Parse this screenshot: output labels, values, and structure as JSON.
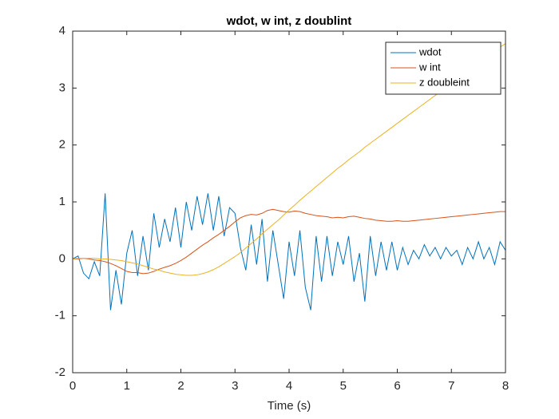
{
  "chart_data": {
    "type": "line",
    "title": "wdot, w int, z doublint",
    "xlabel": "Time (s)",
    "x": [
      0,
      0.1,
      0.2,
      0.3,
      0.4,
      0.5,
      0.6,
      0.7,
      0.8,
      0.9,
      1,
      1.1,
      1.2,
      1.3,
      1.4,
      1.5,
      1.6,
      1.7,
      1.8,
      1.9,
      2,
      2.1,
      2.2,
      2.3,
      2.4,
      2.5,
      2.6,
      2.7,
      2.8,
      2.9,
      3,
      3.1,
      3.2,
      3.3,
      3.4,
      3.5,
      3.6,
      3.7,
      3.8,
      3.9,
      4,
      4.1,
      4.2,
      4.3,
      4.4,
      4.5,
      4.6,
      4.7,
      4.8,
      4.9,
      5,
      5.1,
      5.2,
      5.3,
      5.4,
      5.5,
      5.6,
      5.7,
      5.8,
      5.9,
      6,
      6.1,
      6.2,
      6.3,
      6.4,
      6.5,
      6.6,
      6.7,
      6.8,
      6.9,
      7,
      7.1,
      7.2,
      7.3,
      7.4,
      7.5,
      7.6,
      7.7,
      7.8,
      7.9,
      8
    ],
    "series": [
      {
        "name": "wdot",
        "color": "#0072bd",
        "values": [
          0,
          0.05,
          -0.25,
          -0.35,
          -0.05,
          -0.3,
          1.15,
          -0.9,
          -0.2,
          -0.8,
          0.1,
          0.5,
          -0.3,
          0.4,
          -0.2,
          0.8,
          0.2,
          0.7,
          0.3,
          0.9,
          0.2,
          1.0,
          0.5,
          1.1,
          0.6,
          1.15,
          0.5,
          1.1,
          0.4,
          0.9,
          0.8,
          0.2,
          -0.2,
          0.6,
          -0.1,
          0.7,
          -0.4,
          0.5,
          -0.1,
          -0.7,
          0.3,
          -0.3,
          0.5,
          -0.5,
          -0.9,
          0.4,
          -0.4,
          0.4,
          -0.3,
          0.3,
          -0.1,
          0.4,
          -0.4,
          0.1,
          -0.75,
          0.4,
          -0.3,
          0.3,
          -0.2,
          0.3,
          -0.2,
          0.2,
          -0.1,
          0.15,
          0,
          0.25,
          0.05,
          0.2,
          0,
          0.2,
          0.05,
          0.15,
          -0.1,
          0.2,
          0,
          0.3,
          0,
          0.2,
          -0.1,
          0.3,
          0.15
        ]
      },
      {
        "name": "w int",
        "color": "#d95319",
        "values": [
          0,
          0,
          0.01,
          0,
          -0.02,
          -0.03,
          -0.05,
          -0.08,
          -0.12,
          -0.17,
          -0.22,
          -0.24,
          -0.24,
          -0.26,
          -0.25,
          -0.22,
          -0.18,
          -0.15,
          -0.12,
          -0.08,
          -0.03,
          0.03,
          0.1,
          0.17,
          0.24,
          0.3,
          0.37,
          0.43,
          0.5,
          0.57,
          0.65,
          0.72,
          0.76,
          0.78,
          0.77,
          0.8,
          0.85,
          0.87,
          0.85,
          0.83,
          0.82,
          0.84,
          0.83,
          0.8,
          0.78,
          0.76,
          0.75,
          0.74,
          0.72,
          0.73,
          0.72,
          0.74,
          0.75,
          0.73,
          0.71,
          0.7,
          0.68,
          0.67,
          0.66,
          0.66,
          0.67,
          0.66,
          0.66,
          0.67,
          0.68,
          0.69,
          0.7,
          0.71,
          0.72,
          0.73,
          0.74,
          0.75,
          0.76,
          0.77,
          0.78,
          0.79,
          0.8,
          0.81,
          0.82,
          0.83,
          0.83
        ]
      },
      {
        "name": "z doubleint",
        "color": "#edb120",
        "values": [
          0,
          0.01,
          0.01,
          0.01,
          0.01,
          0,
          0,
          -0.01,
          -0.02,
          -0.03,
          -0.05,
          -0.07,
          -0.09,
          -0.12,
          -0.15,
          -0.18,
          -0.2,
          -0.23,
          -0.25,
          -0.27,
          -0.28,
          -0.29,
          -0.29,
          -0.28,
          -0.26,
          -0.23,
          -0.19,
          -0.14,
          -0.08,
          -0.02,
          0.04,
          0.11,
          0.19,
          0.27,
          0.35,
          0.44,
          0.52,
          0.6,
          0.68,
          0.77,
          0.86,
          0.94,
          1.03,
          1.11,
          1.19,
          1.27,
          1.35,
          1.43,
          1.51,
          1.59,
          1.66,
          1.74,
          1.81,
          1.88,
          1.96,
          2.03,
          2.1,
          2.17,
          2.24,
          2.31,
          2.38,
          2.45,
          2.52,
          2.59,
          2.66,
          2.73,
          2.8,
          2.87,
          2.94,
          3.01,
          3.08,
          3.16,
          3.23,
          3.3,
          3.38,
          3.45,
          3.52,
          3.59,
          3.66,
          3.72,
          3.78
        ]
      }
    ],
    "xlim": [
      0,
      8
    ],
    "xticks": [
      0,
      1,
      2,
      3,
      4,
      5,
      6,
      7,
      8
    ],
    "ylim": [
      -2,
      4
    ],
    "yticks": [
      -2,
      -1,
      0,
      1,
      2,
      3,
      4
    ],
    "legend": "northeast"
  }
}
